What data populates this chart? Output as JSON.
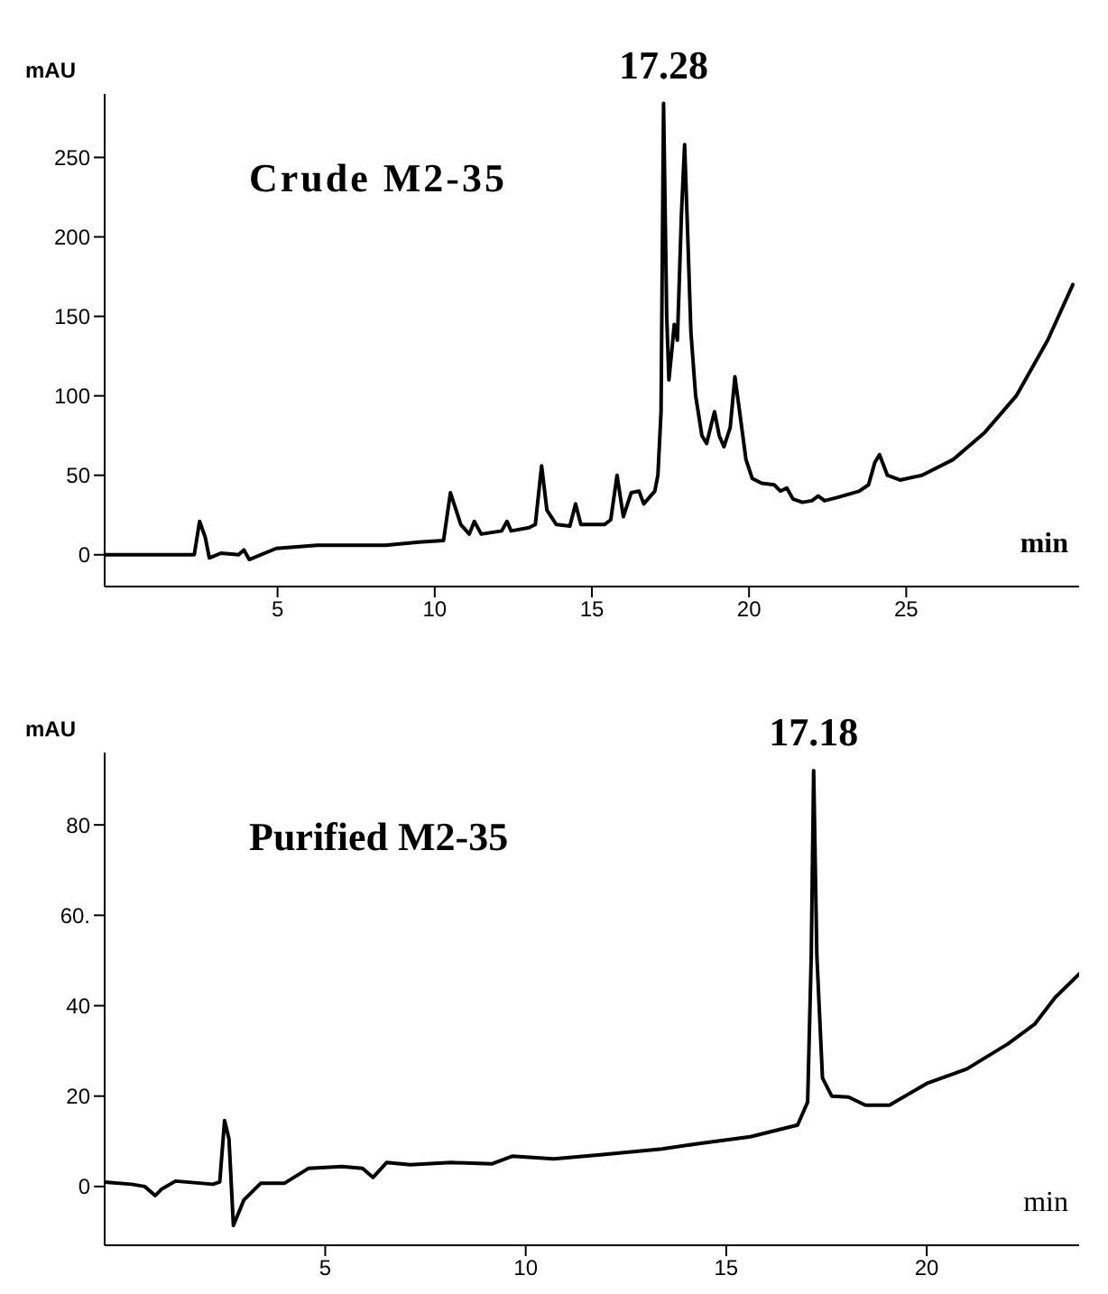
{
  "chart_data": [
    {
      "type": "line",
      "title": "Crude M2-35",
      "xlabel": "min",
      "ylabel": "mAU",
      "xlim": [
        -0.5,
        30.5
      ],
      "xticks": [
        5,
        10,
        15,
        20,
        25
      ],
      "ylim": [
        -20,
        290
      ],
      "yticks": [
        0,
        50,
        100,
        150,
        200,
        250
      ],
      "marker": "none",
      "line_style": "solid",
      "annotations": [
        {
          "text": "17.28",
          "x": 17.28,
          "y": 284
        }
      ],
      "series": [
        {
          "color": "#000000",
          "x": [
            -0.5,
            1.5,
            2.35,
            2.52,
            2.7,
            2.83,
            3.2,
            3.76,
            3.93,
            4.1,
            4.96,
            6.26,
            8.43,
            9.5,
            10.28,
            10.5,
            10.83,
            11.1,
            11.26,
            11.48,
            12.13,
            12.3,
            12.43,
            13.0,
            13.2,
            13.4,
            13.57,
            13.87,
            14.3,
            14.48,
            14.65,
            15.4,
            15.6,
            15.8,
            16.0,
            16.25,
            16.5,
            16.65,
            17.0,
            17.1,
            17.2,
            17.28,
            17.38,
            17.45,
            17.55,
            17.62,
            17.72,
            17.85,
            17.95,
            18.05,
            18.15,
            18.3,
            18.5,
            18.65,
            18.8,
            18.9,
            19.05,
            19.2,
            19.4,
            19.55,
            19.7,
            19.9,
            20.1,
            20.4,
            20.8,
            21.0,
            21.2,
            21.4,
            21.7,
            22.0,
            22.2,
            22.4,
            22.8,
            23.5,
            23.8,
            24.0,
            24.15,
            24.4,
            24.8,
            25.5,
            26.5,
            27.5,
            28.5,
            29.5,
            30.3
          ],
          "values": [
            0,
            0,
            0,
            21,
            11,
            -2,
            1,
            0,
            3,
            -3,
            4,
            6,
            6,
            8,
            9,
            39,
            19,
            13,
            21,
            13,
            15,
            21,
            15,
            17,
            19,
            56,
            28,
            19,
            18,
            32,
            19,
            19,
            22,
            50,
            24,
            39,
            40,
            32,
            40,
            50,
            90,
            284,
            150,
            110,
            130,
            145,
            135,
            215,
            258,
            200,
            140,
            100,
            75,
            70,
            82,
            90,
            75,
            68,
            80,
            112,
            90,
            60,
            48,
            45,
            44,
            40,
            42,
            35,
            33,
            34,
            37,
            34,
            36,
            40,
            44,
            58,
            63,
            50,
            47,
            50,
            60,
            77,
            100,
            135,
            170
          ]
        }
      ]
    },
    {
      "type": "line",
      "title": "Purified M2-35",
      "xlabel": "min",
      "ylabel": "mAU",
      "xlim": [
        -0.5,
        23.8
      ],
      "xticks": [
        5,
        10,
        15,
        20
      ],
      "ylim": [
        -13,
        96
      ],
      "yticks": [
        0,
        20,
        40,
        {
          "value": 60,
          "label": "60."
        },
        80
      ],
      "marker": "none",
      "line_style": "solid",
      "annotations": [
        {
          "text": "17.18",
          "x": 17.18,
          "y": 92
        }
      ],
      "series": [
        {
          "color": "#000000",
          "x": [
            -0.5,
            0.17,
            0.5,
            0.76,
            0.93,
            1.27,
            2.2,
            2.37,
            2.49,
            2.6,
            2.71,
            2.97,
            3.39,
            3.98,
            4.58,
            5.42,
            5.93,
            6.19,
            6.53,
            7.12,
            8.14,
            9.15,
            9.66,
            10.7,
            11.86,
            13.4,
            14.24,
            15.6,
            16.78,
            17.03,
            17.12,
            17.18,
            17.26,
            17.4,
            17.63,
            18.05,
            18.47,
            19.07,
            20.0,
            21.0,
            22.03,
            22.7,
            23.2,
            23.8
          ],
          "values": [
            1,
            0.5,
            0,
            -2,
            -0.5,
            1.2,
            0.5,
            1,
            14.6,
            10.5,
            -8.6,
            -3,
            0.7,
            0.7,
            4,
            4.4,
            4,
            2,
            5.3,
            4.8,
            5.3,
            5,
            6.7,
            6.1,
            7,
            8.3,
            9.4,
            11,
            13.6,
            18.7,
            51,
            92,
            51,
            24,
            20,
            19.8,
            18,
            18,
            22.8,
            26,
            31.6,
            36,
            41.8,
            47
          ]
        }
      ]
    }
  ]
}
